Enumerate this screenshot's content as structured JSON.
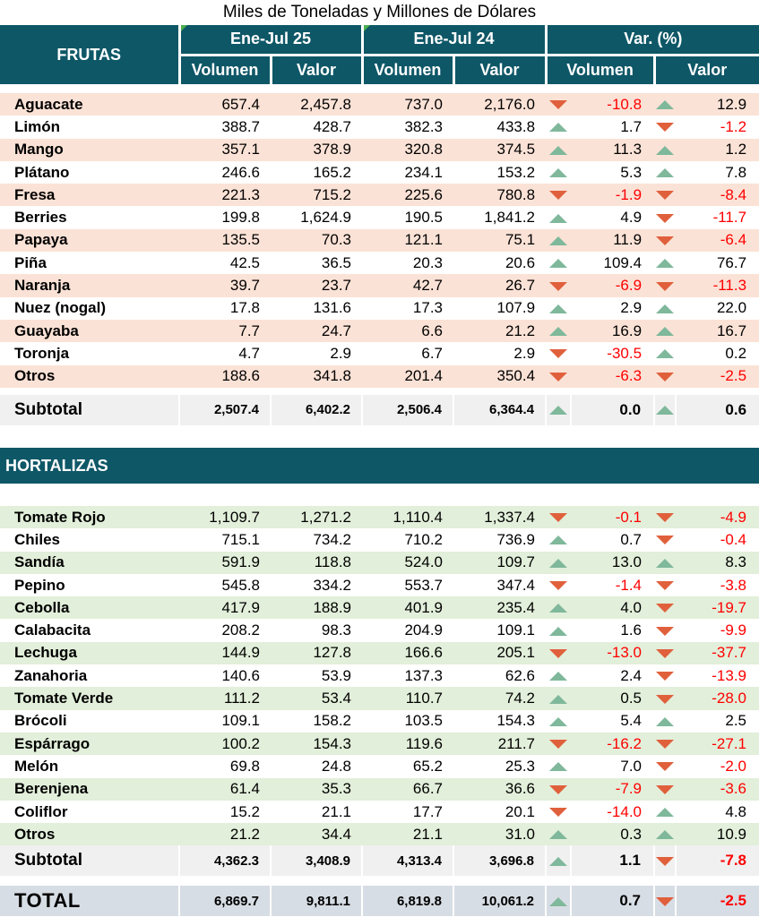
{
  "caption": "Miles de Toneladas y Millones de Dólares",
  "header": {
    "section": "FRUTAS",
    "period1": "Ene-Jul 25",
    "period2": "Ene-Jul 24",
    "variation": "Var. (%)",
    "volumen": "Volumen",
    "valor": "Valor"
  },
  "colors": {
    "header_bg": "#0e5767",
    "fruit_band": "#fbe2d6",
    "veg_band": "#e2efda",
    "up": "#7fb89b",
    "down": "#e0603c",
    "negative": "#ff0000"
  },
  "frutas": [
    {
      "name": "Aguacate",
      "v25": "657.4",
      "val25": "2,457.8",
      "v24": "737.0",
      "val24": "2,176.0",
      "dv": "-10.8",
      "dvdir": "down",
      "dval": "12.9",
      "dvaldir": "up"
    },
    {
      "name": "Limón",
      "v25": "388.7",
      "val25": "428.7",
      "v24": "382.3",
      "val24": "433.8",
      "dv": "1.7",
      "dvdir": "up",
      "dval": "-1.2",
      "dvaldir": "down"
    },
    {
      "name": "Mango",
      "v25": "357.1",
      "val25": "378.9",
      "v24": "320.8",
      "val24": "374.5",
      "dv": "11.3",
      "dvdir": "up",
      "dval": "1.2",
      "dvaldir": "up"
    },
    {
      "name": "Plátano",
      "v25": "246.6",
      "val25": "165.2",
      "v24": "234.1",
      "val24": "153.2",
      "dv": "5.3",
      "dvdir": "up",
      "dval": "7.8",
      "dvaldir": "up"
    },
    {
      "name": "Fresa",
      "v25": "221.3",
      "val25": "715.2",
      "v24": "225.6",
      "val24": "780.8",
      "dv": "-1.9",
      "dvdir": "down",
      "dval": "-8.4",
      "dvaldir": "down"
    },
    {
      "name": "Berries",
      "v25": "199.8",
      "val25": "1,624.9",
      "v24": "190.5",
      "val24": "1,841.2",
      "dv": "4.9",
      "dvdir": "up",
      "dval": "-11.7",
      "dvaldir": "down"
    },
    {
      "name": "Papaya",
      "v25": "135.5",
      "val25": "70.3",
      "v24": "121.1",
      "val24": "75.1",
      "dv": "11.9",
      "dvdir": "up",
      "dval": "-6.4",
      "dvaldir": "down"
    },
    {
      "name": "Piña",
      "v25": "42.5",
      "val25": "36.5",
      "v24": "20.3",
      "val24": "20.6",
      "dv": "109.4",
      "dvdir": "up",
      "dval": "76.7",
      "dvaldir": "up"
    },
    {
      "name": "Naranja",
      "v25": "39.7",
      "val25": "23.7",
      "v24": "42.7",
      "val24": "26.7",
      "dv": "-6.9",
      "dvdir": "down",
      "dval": "-11.3",
      "dvaldir": "down"
    },
    {
      "name": "Nuez (nogal)",
      "v25": "17.8",
      "val25": "131.6",
      "v24": "17.3",
      "val24": "107.9",
      "dv": "2.9",
      "dvdir": "up",
      "dval": "22.0",
      "dvaldir": "up"
    },
    {
      "name": "Guayaba",
      "v25": "7.7",
      "val25": "24.7",
      "v24": "6.6",
      "val24": "21.2",
      "dv": "16.9",
      "dvdir": "up",
      "dval": "16.7",
      "dvaldir": "up"
    },
    {
      "name": "Toronja",
      "v25": "4.7",
      "val25": "2.9",
      "v24": "6.7",
      "val24": "2.9",
      "dv": "-30.5",
      "dvdir": "down",
      "dval": "0.2",
      "dvaldir": "up"
    },
    {
      "name": "Otros",
      "v25": "188.6",
      "val25": "341.8",
      "v24": "201.4",
      "val24": "350.4",
      "dv": "-6.3",
      "dvdir": "down",
      "dval": "-2.5",
      "dvaldir": "down"
    }
  ],
  "frutas_subtotal": {
    "name": "Subtotal",
    "v25": "2,507.4",
    "val25": "6,402.2",
    "v24": "2,506.4",
    "val24": "6,364.4",
    "dv": "0.0",
    "dvdir": "up",
    "dval": "0.6",
    "dvaldir": "up"
  },
  "hortalizas_title": "HORTALIZAS",
  "hortalizas": [
    {
      "name": "Tomate Rojo",
      "v25": "1,109.7",
      "val25": "1,271.2",
      "v24": "1,110.4",
      "val24": "1,337.4",
      "dv": "-0.1",
      "dvdir": "down",
      "dval": "-4.9",
      "dvaldir": "down"
    },
    {
      "name": "Chiles",
      "v25": "715.1",
      "val25": "734.2",
      "v24": "710.2",
      "val24": "736.9",
      "dv": "0.7",
      "dvdir": "up",
      "dval": "-0.4",
      "dvaldir": "down"
    },
    {
      "name": "Sandía",
      "v25": "591.9",
      "val25": "118.8",
      "v24": "524.0",
      "val24": "109.7",
      "dv": "13.0",
      "dvdir": "up",
      "dval": "8.3",
      "dvaldir": "up"
    },
    {
      "name": "Pepino",
      "v25": "545.8",
      "val25": "334.2",
      "v24": "553.7",
      "val24": "347.4",
      "dv": "-1.4",
      "dvdir": "down",
      "dval": "-3.8",
      "dvaldir": "down"
    },
    {
      "name": "Cebolla",
      "v25": "417.9",
      "val25": "188.9",
      "v24": "401.9",
      "val24": "235.4",
      "dv": "4.0",
      "dvdir": "up",
      "dval": "-19.7",
      "dvaldir": "down"
    },
    {
      "name": "Calabacita",
      "v25": "208.2",
      "val25": "98.3",
      "v24": "204.9",
      "val24": "109.1",
      "dv": "1.6",
      "dvdir": "up",
      "dval": "-9.9",
      "dvaldir": "down"
    },
    {
      "name": "Lechuga",
      "v25": "144.9",
      "val25": "127.8",
      "v24": "166.6",
      "val24": "205.1",
      "dv": "-13.0",
      "dvdir": "down",
      "dval": "-37.7",
      "dvaldir": "down"
    },
    {
      "name": "Zanahoria",
      "v25": "140.6",
      "val25": "53.9",
      "v24": "137.3",
      "val24": "62.6",
      "dv": "2.4",
      "dvdir": "up",
      "dval": "-13.9",
      "dvaldir": "down"
    },
    {
      "name": "Tomate Verde",
      "v25": "111.2",
      "val25": "53.4",
      "v24": "110.7",
      "val24": "74.2",
      "dv": "0.5",
      "dvdir": "up",
      "dval": "-28.0",
      "dvaldir": "down"
    },
    {
      "name": "Brócoli",
      "v25": "109.1",
      "val25": "158.2",
      "v24": "103.5",
      "val24": "154.3",
      "dv": "5.4",
      "dvdir": "up",
      "dval": "2.5",
      "dvaldir": "up"
    },
    {
      "name": "Espárrago",
      "v25": "100.2",
      "val25": "154.3",
      "v24": "119.6",
      "val24": "211.7",
      "dv": "-16.2",
      "dvdir": "down",
      "dval": "-27.1",
      "dvaldir": "down"
    },
    {
      "name": "Melón",
      "v25": "69.8",
      "val25": "24.8",
      "v24": "65.2",
      "val24": "25.3",
      "dv": "7.0",
      "dvdir": "up",
      "dval": "-2.0",
      "dvaldir": "down"
    },
    {
      "name": "Berenjena",
      "v25": "61.4",
      "val25": "35.3",
      "v24": "66.7",
      "val24": "36.6",
      "dv": "-7.9",
      "dvdir": "down",
      "dval": "-3.6",
      "dvaldir": "down"
    },
    {
      "name": "Coliflor",
      "v25": "15.2",
      "val25": "21.1",
      "v24": "17.7",
      "val24": "20.1",
      "dv": "-14.0",
      "dvdir": "down",
      "dval": "4.8",
      "dvaldir": "up"
    },
    {
      "name": "Otros",
      "v25": "21.2",
      "val25": "34.4",
      "v24": "21.1",
      "val24": "31.0",
      "dv": "0.3",
      "dvdir": "up",
      "dval": "10.9",
      "dvaldir": "up"
    }
  ],
  "hortalizas_subtotal": {
    "name": "Subtotal",
    "v25": "4,362.3",
    "val25": "3,408.9",
    "v24": "4,313.4",
    "val24": "3,696.8",
    "dv": "1.1",
    "dvdir": "up",
    "dval": "-7.8",
    "dvaldir": "down"
  },
  "total": {
    "name": "TOTAL",
    "v25": "6,869.7",
    "val25": "9,811.1",
    "v24": "6,819.8",
    "val24": "10,061.2",
    "dv": "0.7",
    "dvdir": "up",
    "dval": "-2.5",
    "dvaldir": "down"
  }
}
